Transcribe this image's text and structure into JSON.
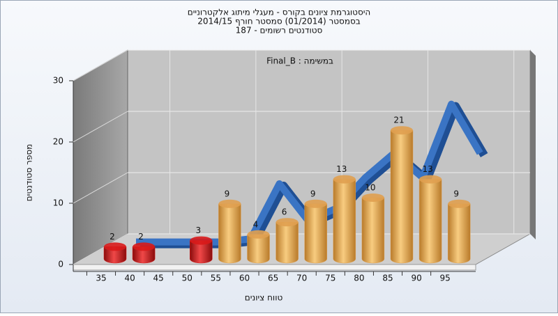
{
  "chart_data": {
    "type": "bar",
    "title": [
      "היסטוגרמת ציונים בקורס - מעגלי מיתוג אלקטרוניים",
      "בסמסטר  (01/2014)  סמסטר חורף 2014/15",
      "187 - סטודנטים רשומים"
    ],
    "annotation": "Final_B : במשימה",
    "x_label": "טווח ציונים",
    "y_label": "מספר סטודנטים",
    "categories": [
      "35",
      "40",
      "45",
      "50",
      "55",
      "60",
      "65",
      "70",
      "75",
      "80",
      "85",
      "90",
      "95"
    ],
    "values": [
      2,
      2,
      null,
      3,
      9,
      4,
      6,
      9,
      13,
      10,
      21,
      13,
      9
    ],
    "colors": [
      "#d81a1a",
      "#d81a1a",
      null,
      "#d81a1a",
      "#e0a050",
      "#e0a050",
      "#e0a050",
      "#e0a050",
      "#e0a050",
      "#e0a050",
      "#e0a050",
      "#e0a050",
      "#e0a050"
    ],
    "line": {
      "color": "#3a74c4",
      "values": [
        0.5,
        0.5,
        0.5,
        0.5,
        1,
        10,
        4,
        6,
        11,
        15,
        11,
        23,
        15
      ]
    },
    "ylim": [
      0,
      30
    ],
    "yticks": [
      0,
      10,
      20,
      30
    ],
    "grid": true
  }
}
